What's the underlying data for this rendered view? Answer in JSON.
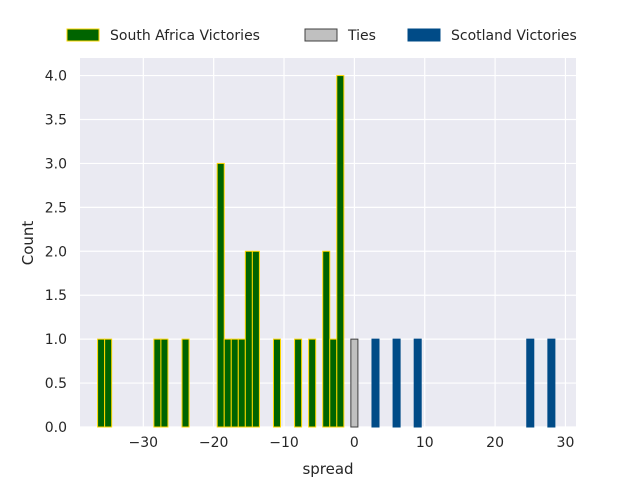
{
  "chart_data": {
    "type": "bar",
    "xlabel": "spread",
    "ylabel": "Count",
    "xlim": [
      -39,
      31.5
    ],
    "ylim": [
      0,
      4.2
    ],
    "grid": true,
    "legend_position": "top-center",
    "xticks": [
      -30,
      -20,
      -10,
      0,
      10,
      20,
      30
    ],
    "xtick_labels": [
      "−30",
      "−20",
      "−10",
      "0",
      "10",
      "20",
      "30"
    ],
    "yticks": [
      0,
      0.5,
      1,
      1.5,
      2,
      2.5,
      3,
      3.5,
      4
    ],
    "ytick_labels": [
      "0.0",
      "0.5",
      "1.0",
      "1.5",
      "2.0",
      "2.5",
      "3.0",
      "3.5",
      "4.0"
    ],
    "bar_width": 1,
    "series": [
      {
        "name": "South Africa Victories",
        "color": "#006400",
        "edgecolor": "#FFD700",
        "x": [
          -36,
          -35,
          -28,
          -27,
          -24,
          -19,
          -18,
          -17,
          -16,
          -15,
          -14,
          -11,
          -8,
          -6,
          -4,
          -3,
          -2
        ],
        "values": [
          1,
          1,
          1,
          1,
          1,
          3,
          1,
          1,
          1,
          2,
          2,
          1,
          1,
          1,
          2,
          1,
          4
        ]
      },
      {
        "name": "Ties",
        "color": "#C0C0C0",
        "edgecolor": "#404040",
        "x": [
          0
        ],
        "values": [
          1
        ]
      },
      {
        "name": "Scotland Victories",
        "color": "#004B87",
        "edgecolor": "#004B87",
        "x": [
          3,
          6,
          9,
          25,
          28
        ],
        "values": [
          1,
          1,
          1,
          1,
          1
        ]
      }
    ]
  }
}
